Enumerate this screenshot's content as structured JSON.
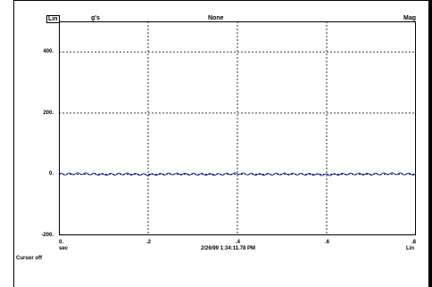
{
  "header": {
    "left_box": "Lin",
    "units": "g's",
    "window": "None",
    "mode": "Mag"
  },
  "x_unit": "sec",
  "x_scale": "Lin",
  "timestamp": "2/26/99 1:34:11.78 PM",
  "cursor_status": "Cursor off",
  "colors": {
    "trace": "#1f2aa0",
    "grid": "#000000",
    "frame": "#000000"
  },
  "chart_data": {
    "type": "line",
    "title": "",
    "xlabel": "sec",
    "ylabel": "g's",
    "xlim": [
      0,
      0.8
    ],
    "ylim": [
      -200,
      500
    ],
    "x_ticks": [
      {
        "value": 0,
        "label": "0."
      },
      {
        "value": 0.2,
        "label": ".2"
      },
      {
        "value": 0.4,
        "label": ".4"
      },
      {
        "value": 0.6,
        "label": ".6"
      },
      {
        "value": 0.8,
        "label": ".8"
      }
    ],
    "y_ticks": [
      {
        "value": 400,
        "label": "400."
      },
      {
        "value": 200,
        "label": "200."
      },
      {
        "value": 0,
        "label": "0."
      },
      {
        "value": -200,
        "label": "-200."
      }
    ],
    "grid": true,
    "series": [
      {
        "values_description_free": true,
        "x": [
          0,
          0.05,
          0.1,
          0.15,
          0.2,
          0.25,
          0.3,
          0.35,
          0.4,
          0.45,
          0.5,
          0.55,
          0.6,
          0.65,
          0.7,
          0.75,
          0.8
        ],
        "y": [
          0,
          2,
          -1,
          1,
          -2,
          1,
          0,
          -1,
          2,
          -1,
          1,
          0,
          -2,
          1,
          0,
          2,
          0
        ]
      }
    ]
  }
}
